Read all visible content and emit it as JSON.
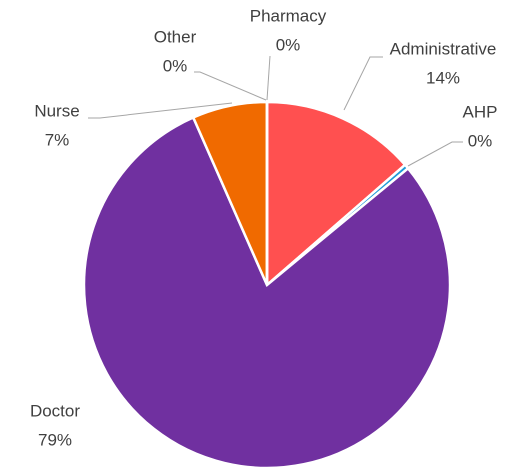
{
  "chart_data": {
    "type": "pie",
    "categories": [
      "Administrative",
      "AHP",
      "Doctor",
      "Nurse",
      "Other",
      "Pharmacy"
    ],
    "values": [
      13.6,
      0.4,
      79.4,
      6.6,
      0,
      0
    ],
    "value_labels": [
      "14%",
      "0%",
      "79%",
      "7%",
      "0%",
      "0%"
    ],
    "colors": [
      "#ff5050",
      "#1f9bd7",
      "#7030a0",
      "#f06a00",
      "#a5a5a5",
      "#7f7f7f"
    ]
  }
}
